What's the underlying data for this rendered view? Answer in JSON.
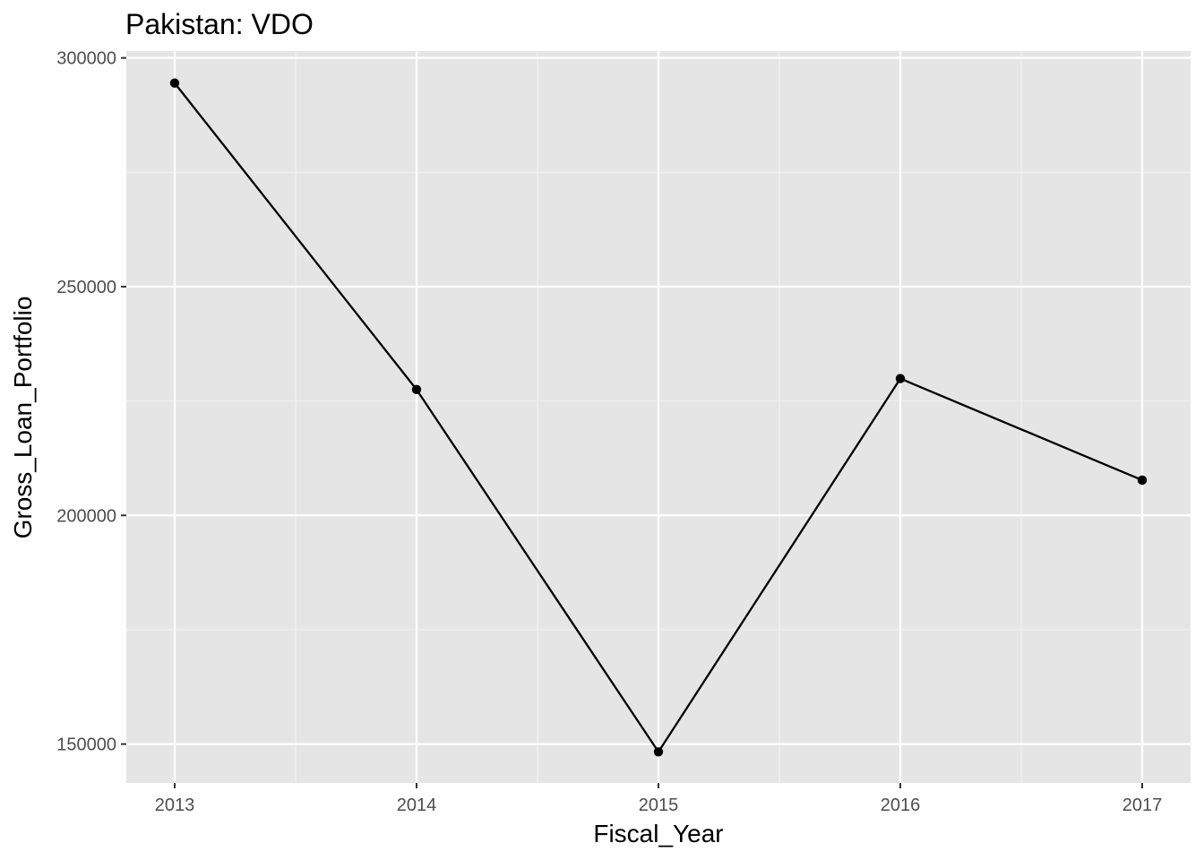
{
  "chart_data": {
    "type": "line",
    "title": "Pakistan:  VDO",
    "xlabel": "Fiscal_Year",
    "ylabel": "Gross_Loan_Portfolio",
    "x": [
      2013,
      2014,
      2015,
      2016,
      2017
    ],
    "x_tick_labels": [
      "2013",
      "2014",
      "2015",
      "2016",
      "2017"
    ],
    "y_ticks": [
      150000,
      200000,
      250000,
      300000
    ],
    "y_tick_labels": [
      "150000",
      "200000",
      "250000",
      "300000"
    ],
    "xlim": [
      2012.8,
      2017.2
    ],
    "ylim": [
      141500,
      301500
    ],
    "series": [
      {
        "values": [
          294500,
          227500,
          148300,
          229900,
          207700
        ]
      }
    ],
    "grid": true,
    "legend": "none",
    "colors": {
      "panel_background": "#e5e5e5",
      "grid_major": "#ffffff",
      "grid_minor": "#f2f2f2",
      "line": "#000000",
      "point": "#000000",
      "tick_mark": "#333333"
    }
  }
}
